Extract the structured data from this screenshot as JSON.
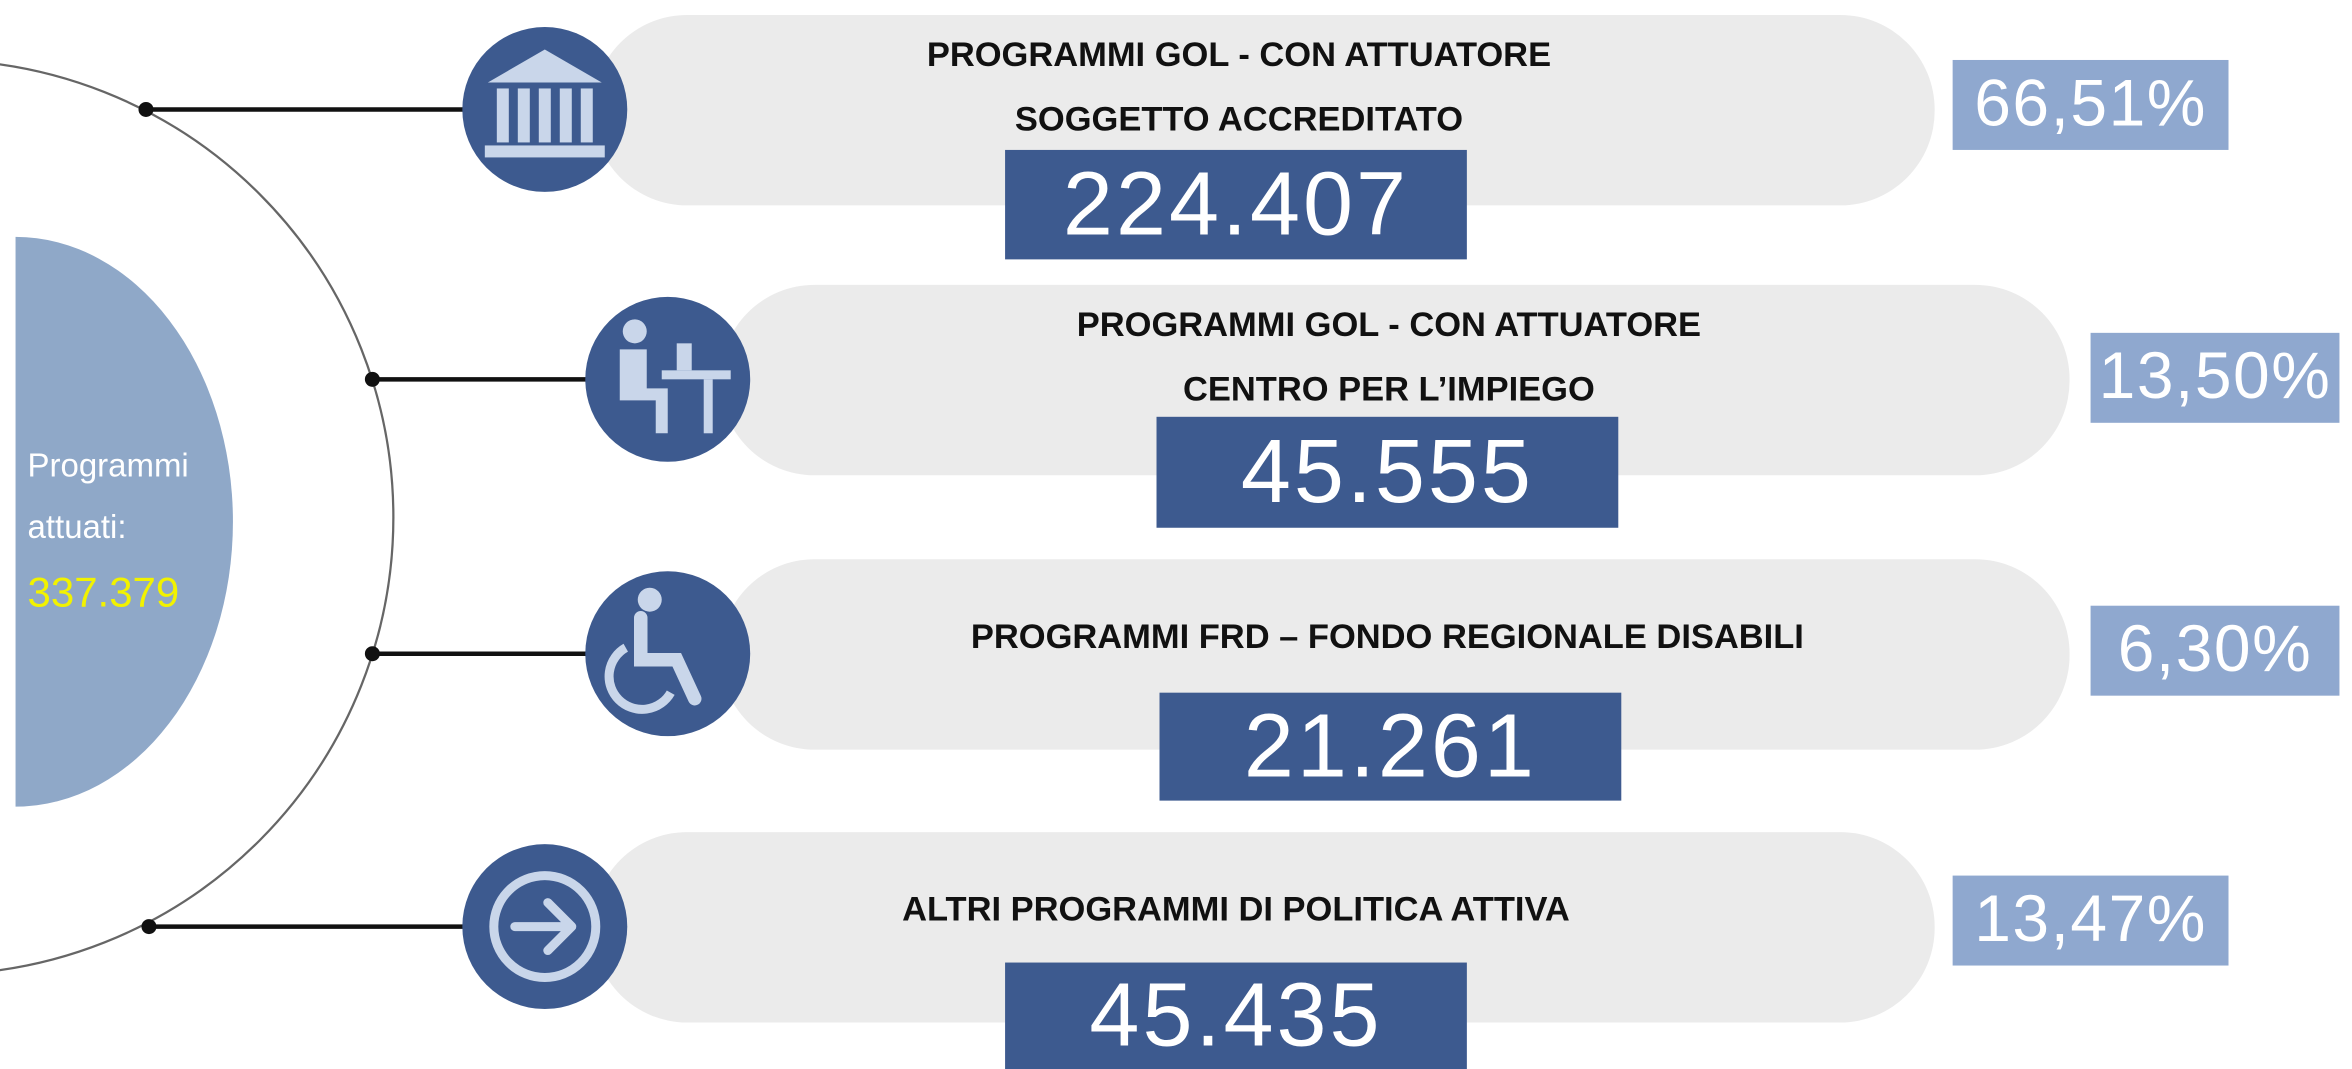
{
  "center": {
    "label": [
      "Programmi",
      "attuati:"
    ],
    "total": "337.379"
  },
  "items": [
    {
      "title": [
        "PROGRAMMI GOL - CON ATTUATORE",
        "SOGGETTO ACCREDITATO"
      ],
      "value": "224.407",
      "percent": "66,51%"
    },
    {
      "title": [
        "PROGRAMMI GOL - CON ATTUATORE",
        "CENTRO PER L’IMPIEGO"
      ],
      "value": "45.555",
      "percent": "13,50%"
    },
    {
      "title": [
        "PROGRAMMI FRD – FONDO REGIONALE DISABILI"
      ],
      "value": "21.261",
      "percent": "6,30%"
    },
    {
      "title": [
        "ALTRI PROGRAMMI DI POLITICA ATTIVA"
      ],
      "value": "45.435",
      "percent": "13,47%"
    }
  ]
}
